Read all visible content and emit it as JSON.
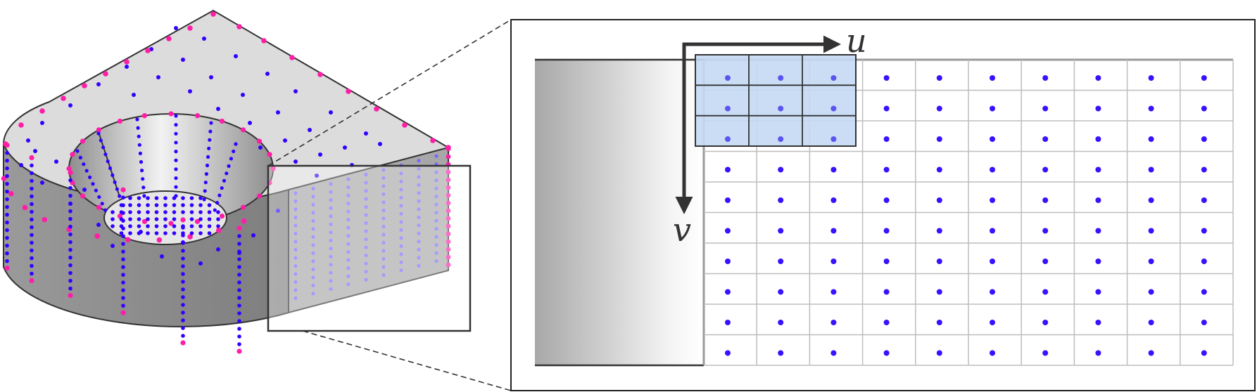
{
  "figure": {
    "axis_labels": {
      "u": "u",
      "v": "v"
    },
    "model": {
      "description_icon": "cad-part-3d-icon",
      "colors": {
        "top_face": "#dcdcdc",
        "side_face_dark": "#8a8a8a",
        "side_face_light": "#a5a5a5",
        "edge": "#333333",
        "edge_point": "#ff1ea8",
        "interior_point": "#3300ff"
      }
    },
    "uv_grid": {
      "columns": 10,
      "rows": 10,
      "kernel_size": 3,
      "colors": {
        "grid_line": "#bdbdbd",
        "point": "#3a10ff",
        "kernel_fill": "#c4d9f4",
        "kernel_stroke": "#333333",
        "frame": "#222222"
      }
    }
  }
}
